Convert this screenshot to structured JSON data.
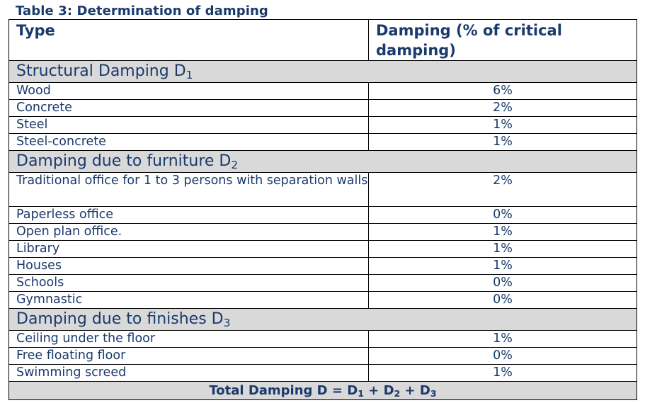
{
  "caption": "Table 3: Determination of damping",
  "header": {
    "type": "Type",
    "damping": "Damping (% of critical damping)"
  },
  "sections": [
    {
      "title": "Structural Damping D",
      "sub": "1",
      "rows": [
        {
          "type": "Wood",
          "value": "6%"
        },
        {
          "type": "Concrete",
          "value": "2%"
        },
        {
          "type": "Steel",
          "value": "1%"
        },
        {
          "type": "Steel-concrete",
          "value": "1%"
        }
      ]
    },
    {
      "title": "Damping due to furniture D",
      "sub": "2",
      "rows": [
        {
          "type": "Traditional office for 1 to 3 persons with separation walls",
          "value": "2%"
        },
        {
          "type": "Paperless office",
          "value": "0%"
        },
        {
          "type": "Open plan office.",
          "value": "1%"
        },
        {
          "type": "Library",
          "value": "1%"
        },
        {
          "type": "Houses",
          "value": "1%"
        },
        {
          "type": "Schools",
          "value": "0%"
        },
        {
          "type": "Gymnastic",
          "value": "0%"
        }
      ]
    },
    {
      "title": "Damping due to finishes D",
      "sub": "3",
      "rows": [
        {
          "type": "Ceiling under the floor",
          "value": "1%"
        },
        {
          "type": "Free floating floor",
          "value": "0%"
        },
        {
          "type": "Swimming screed",
          "value": "1%"
        }
      ]
    }
  ],
  "total": {
    "prefix": "Total Damping D = D",
    "s1": "1",
    "plus1": " + D",
    "s2": "2",
    "plus2": " + D",
    "s3": "3"
  }
}
